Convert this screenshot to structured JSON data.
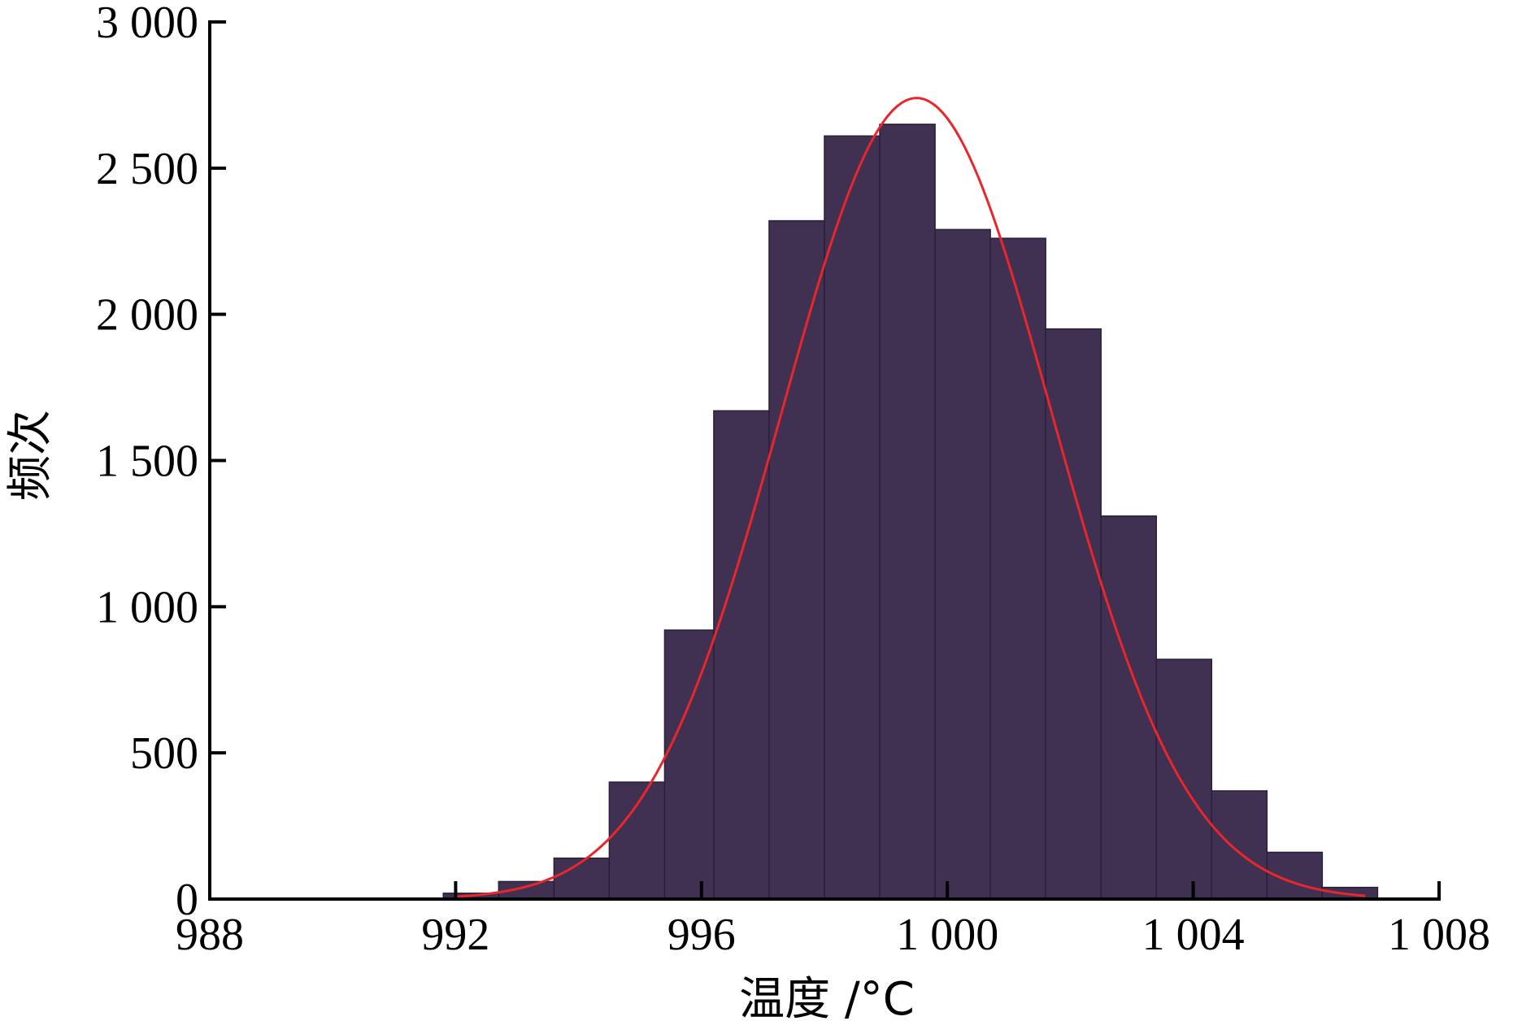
{
  "chart_data": {
    "type": "bar",
    "title": "",
    "xlabel": "温度 /°C",
    "ylabel": "频次",
    "xlim": [
      988,
      1008
    ],
    "ylim": [
      0,
      3000
    ],
    "x_ticks": [
      988,
      992,
      996,
      1000,
      1004,
      1008
    ],
    "x_tick_labels": [
      "988",
      "992",
      "996",
      "1 000",
      "1 004",
      "1 008"
    ],
    "y_ticks": [
      0,
      500,
      1000,
      1500,
      2000,
      2500,
      3000
    ],
    "y_tick_labels": [
      "0",
      "500",
      "1 000",
      "1 500",
      "2 000",
      "2 500",
      "3 000"
    ],
    "grid": false,
    "bins": [
      {
        "x0": 991.8,
        "x1": 992.7,
        "count": 20
      },
      {
        "x0": 992.7,
        "x1": 993.6,
        "count": 60
      },
      {
        "x0": 993.6,
        "x1": 994.5,
        "count": 140
      },
      {
        "x0": 994.5,
        "x1": 995.4,
        "count": 400
      },
      {
        "x0": 995.4,
        "x1": 996.2,
        "count": 920
      },
      {
        "x0": 996.2,
        "x1": 997.1,
        "count": 1670
      },
      {
        "x0": 997.1,
        "x1": 998.0,
        "count": 2320
      },
      {
        "x0": 998.0,
        "x1": 998.9,
        "count": 2610
      },
      {
        "x0": 998.9,
        "x1": 999.8,
        "count": 2650
      },
      {
        "x0": 999.8,
        "x1": 1000.7,
        "count": 2290
      },
      {
        "x0": 1000.7,
        "x1": 1001.6,
        "count": 2260
      },
      {
        "x0": 1001.6,
        "x1": 1002.5,
        "count": 1950
      },
      {
        "x0": 1002.5,
        "x1": 1003.4,
        "count": 1310
      },
      {
        "x0": 1003.4,
        "x1": 1004.3,
        "count": 820
      },
      {
        "x0": 1004.3,
        "x1": 1005.2,
        "count": 370
      },
      {
        "x0": 1005.2,
        "x1": 1006.1,
        "count": 160
      },
      {
        "x0": 1006.1,
        "x1": 1007.0,
        "count": 40
      }
    ],
    "fit_curve": {
      "type": "normal",
      "peak": 2740,
      "mean": 999.5,
      "sd": 2.2,
      "x_range": [
        992.0,
        1006.8
      ]
    },
    "colors": {
      "bar_fill": "#403152",
      "bar_edge": "#2a1f38",
      "curve": "#e8262b",
      "axis": "#000000"
    }
  }
}
